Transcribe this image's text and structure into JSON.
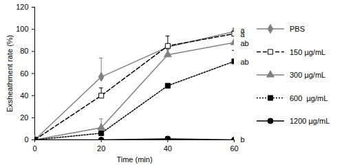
{
  "chart_data": {
    "type": "line",
    "xlabel": "Time (min)",
    "ylabel": "Exsheathment rate (%)",
    "x": [
      0,
      20,
      40,
      60
    ],
    "xlim": [
      0,
      60
    ],
    "xticks": [
      0,
      20,
      40,
      60
    ],
    "ylim": [
      0,
      120
    ],
    "yticks": [
      0,
      20,
      40,
      60,
      80,
      100,
      120
    ],
    "grid": false,
    "legend": "right",
    "series": [
      {
        "name": "PBS",
        "color": "#808080",
        "marker": "diamond",
        "line_style": "solid",
        "values": [
          0,
          57,
          84,
          98
        ],
        "errors": [
          0,
          17,
          2,
          3
        ]
      },
      {
        "name": "150 µg/mL",
        "color": "#000000",
        "marker": "square-open",
        "line_style": "dashed",
        "values": [
          0,
          40,
          85,
          96
        ],
        "errors": [
          0,
          7,
          9,
          3
        ]
      },
      {
        "name": "300 µg/mL",
        "color": "#808080",
        "marker": "triangle",
        "line_style": "solid",
        "values": [
          0,
          11,
          77,
          88
        ],
        "errors": [
          0,
          8,
          0,
          0
        ]
      },
      {
        "name": "600  µg/mL",
        "color": "#000000",
        "marker": "square",
        "line_style": "dotted",
        "values": [
          0,
          6,
          49,
          71
        ],
        "errors": [
          0,
          2,
          0,
          10
        ]
      },
      {
        "name": "1200 µg/mL",
        "color": "#000000",
        "marker": "circle",
        "line_style": "solid",
        "values": [
          0,
          0,
          1,
          0
        ],
        "errors": [
          0,
          0,
          2,
          0
        ]
      }
    ],
    "annotations": [
      {
        "x": 60,
        "y": 99,
        "text": "a"
      },
      {
        "x": 60,
        "y": 95,
        "text": "a"
      },
      {
        "x": 60,
        "y": 87,
        "text": "ab"
      },
      {
        "x": 60,
        "y": 70,
        "text": "ab"
      },
      {
        "x": 60,
        "y": 0,
        "text": "b"
      }
    ]
  }
}
